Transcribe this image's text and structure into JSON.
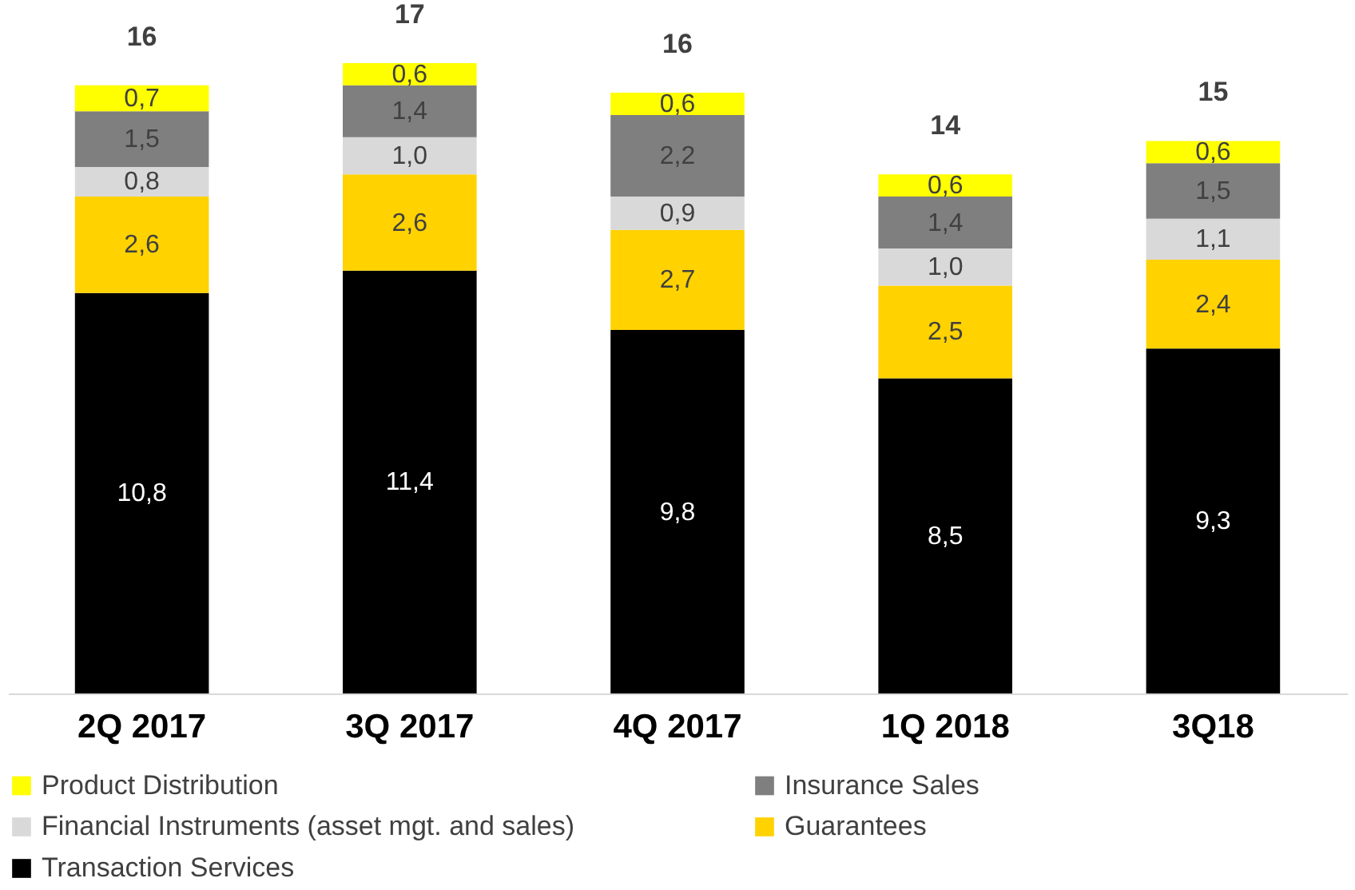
{
  "chart_data": {
    "type": "bar",
    "stacked": true,
    "legend": "bottom",
    "categories": [
      "2Q 2017",
      "3Q 2017",
      "4Q 2017",
      "1Q 2018",
      "3Q18"
    ],
    "series": [
      {
        "name": "Transaction Services",
        "color": "#000000",
        "values": [
          10.8,
          11.4,
          9.8,
          8.5,
          9.3
        ],
        "value_labels": [
          "10,8",
          "11,4",
          "9,8",
          "8,5",
          "9,3"
        ]
      },
      {
        "name": "Guarantees",
        "color": "#ffd200",
        "values": [
          2.6,
          2.6,
          2.7,
          2.5,
          2.4
        ],
        "value_labels": [
          "2,6",
          "2,6",
          "2,7",
          "2,5",
          "2,4"
        ]
      },
      {
        "name": "Financial Instruments (asset mgt. and sales)",
        "color": "#d9d9d9",
        "values": [
          0.8,
          1.0,
          0.9,
          1.0,
          1.1
        ],
        "value_labels": [
          "0,8",
          "1,0",
          "0,9",
          "1,0",
          "1,1"
        ]
      },
      {
        "name": "Insurance Sales",
        "color": "#7f7f7f",
        "values": [
          1.5,
          1.4,
          2.2,
          1.4,
          1.5
        ],
        "value_labels": [
          "1,5",
          "1,4",
          "2,2",
          "1,4",
          "1,5"
        ]
      },
      {
        "name": "Product Distribution",
        "color": "#ffff00",
        "values": [
          0.7,
          0.6,
          0.6,
          0.6,
          0.6
        ],
        "value_labels": [
          "0,7",
          "0,6",
          "0,6",
          "0,6",
          "0,6"
        ]
      }
    ],
    "totals": [
      "16",
      "17",
      "16",
      "14",
      "15"
    ]
  }
}
